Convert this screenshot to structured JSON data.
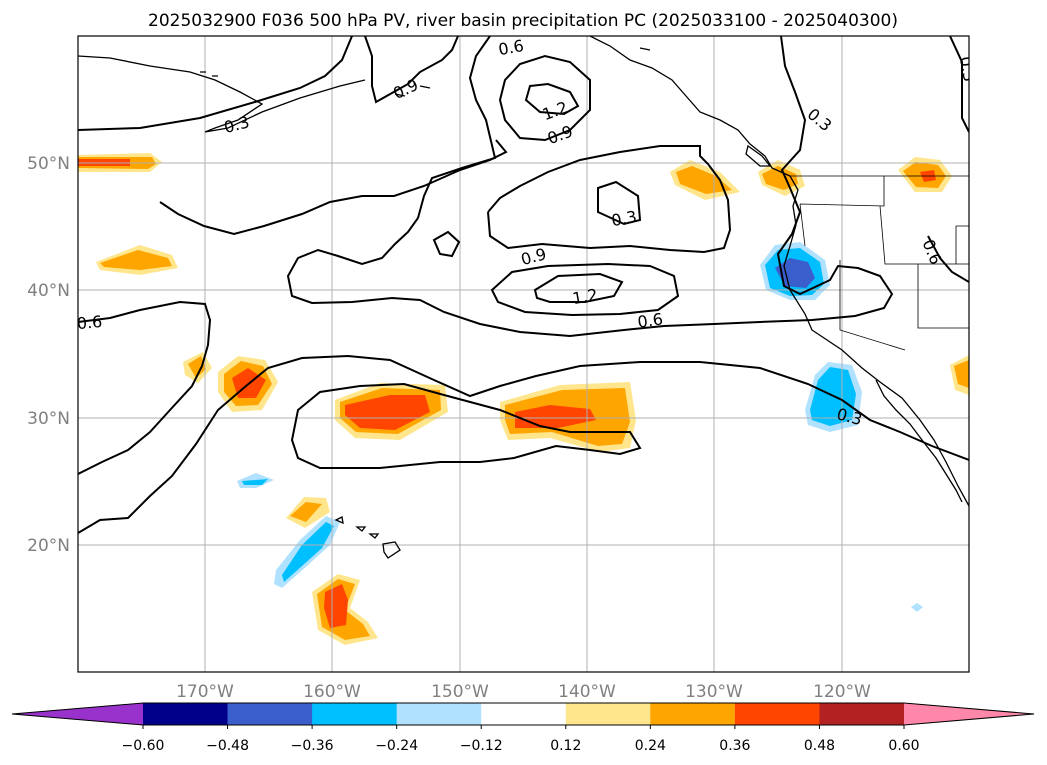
{
  "title": "2025032900 F036 500 hPa PV, river basin precipitation PC (2025033100 - 2025040300)",
  "map": {
    "lon_labels": [
      "170°W",
      "160°W",
      "150°W",
      "140°W",
      "130°W",
      "120°W"
    ],
    "lat_labels": [
      "50°N",
      "40°N",
      "30°N",
      "20°N"
    ],
    "grid": true
  },
  "pv_contour_labels": [
    "0.3",
    "0.6",
    "0.9",
    "1.2",
    "1.2",
    "0.9",
    "0.3",
    "0.9",
    "0.3",
    "0.6",
    "0.6",
    "0.6",
    "0.3",
    "0.3"
  ],
  "colorbar": {
    "ticks": [
      "−0.60",
      "−0.48",
      "−0.36",
      "−0.24",
      "−0.12",
      "0.12",
      "0.24",
      "0.36",
      "0.48",
      "0.60"
    ],
    "colors": [
      "#9932cc",
      "#00008b",
      "#3a5fcd",
      "#00bfff",
      "#b0e2ff",
      "#ffffff",
      "#ffe68c",
      "#ffa500",
      "#ff4500",
      "#b22222",
      "#ff88aa"
    ],
    "extend": "both"
  },
  "colors": {
    "pv_contour": "#000000",
    "coastline": "#000000",
    "grid": "#b0b0b0"
  }
}
